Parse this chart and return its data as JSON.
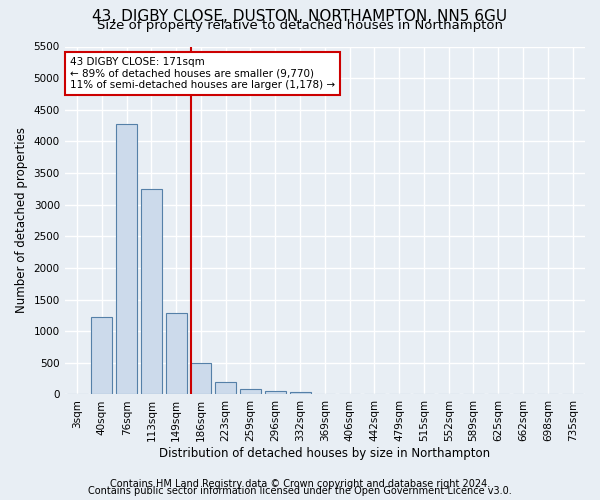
{
  "title": "43, DIGBY CLOSE, DUSTON, NORTHAMPTON, NN5 6GU",
  "subtitle": "Size of property relative to detached houses in Northampton",
  "xlabel": "Distribution of detached houses by size in Northampton",
  "ylabel": "Number of detached properties",
  "footer_line1": "Contains HM Land Registry data © Crown copyright and database right 2024.",
  "footer_line2": "Contains public sector information licensed under the Open Government Licence v3.0.",
  "categories": [
    "3sqm",
    "40sqm",
    "76sqm",
    "113sqm",
    "149sqm",
    "186sqm",
    "223sqm",
    "259sqm",
    "296sqm",
    "332sqm",
    "369sqm",
    "406sqm",
    "442sqm",
    "479sqm",
    "515sqm",
    "552sqm",
    "589sqm",
    "625sqm",
    "662sqm",
    "698sqm",
    "735sqm"
  ],
  "values": [
    0,
    1230,
    4280,
    3250,
    1280,
    490,
    200,
    90,
    60,
    45,
    10,
    0,
    0,
    0,
    0,
    0,
    0,
    0,
    0,
    0,
    0
  ],
  "bar_color": "#ccdaeb",
  "bar_edge_color": "#5580a8",
  "property_label": "43 DIGBY CLOSE: 171sqm",
  "annotation_line1": "← 89% of detached houses are smaller (9,770)",
  "annotation_line2": "11% of semi-detached houses are larger (1,178) →",
  "annotation_box_color": "#ffffff",
  "annotation_box_edge_color": "#cc0000",
  "line_color": "#cc0000",
  "ylim": [
    0,
    5500
  ],
  "yticks": [
    0,
    500,
    1000,
    1500,
    2000,
    2500,
    3000,
    3500,
    4000,
    4500,
    5000,
    5500
  ],
  "background_color": "#e8eef4",
  "grid_color": "#ffffff",
  "title_fontsize": 11,
  "subtitle_fontsize": 9.5,
  "axis_label_fontsize": 8.5,
  "tick_fontsize": 7.5,
  "footer_fontsize": 7
}
